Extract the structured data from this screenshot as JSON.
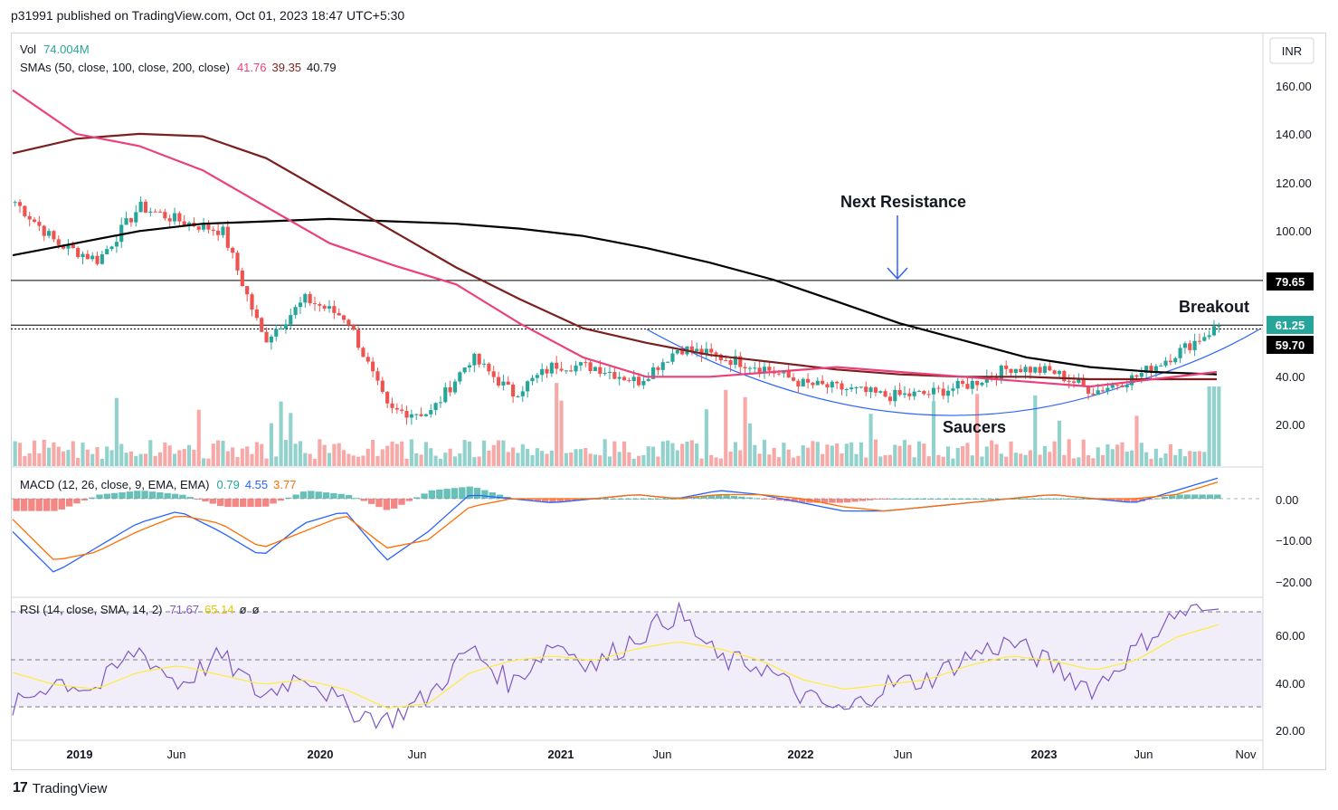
{
  "header": {
    "published_text": "p31991 published on TradingView.com, Oct 01, 2023 18:47 UTC+5:30"
  },
  "currency": "INR",
  "footer": {
    "brand": "TradingView"
  },
  "legends": {
    "vol_label": "Vol",
    "vol_value": "74.004M",
    "sma_label": "SMAs (50, close, 100, close, 200, close)",
    "sma_values": [
      "41.76",
      "39.35",
      "40.79"
    ],
    "macd_label": "MACD (12, 26, close, 9, EMA, EMA)",
    "macd_values": [
      "0.79",
      "4.55",
      "3.77"
    ],
    "rsi_label": "RSI (14, close, SMA, 14, 2)",
    "rsi_values": [
      "71.67",
      "65.14",
      "ø",
      "ø"
    ]
  },
  "annotations": {
    "next_resistance": "Next Resistance",
    "breakout": "Breakout",
    "saucers": "Saucers"
  },
  "price_tags": [
    "79.65",
    "61.25",
    "59.70"
  ],
  "colors": {
    "up": "#26a69a",
    "down": "#ef5350",
    "sma50": "#ec407a",
    "sma100": "#7b1f1f",
    "sma200": "#000000",
    "macd": "#2962ff",
    "signal": "#ff6d00",
    "rsi": "#7e57c2",
    "rsi_ma": "#ffeb3b",
    "saucer": "#2962ff"
  },
  "chart_data": [
    {
      "type": "candlestick",
      "title": "Price (INR) with SMAs 50/100/200 and Volume",
      "x_ticks": [
        "2019",
        "Jun",
        "2020",
        "Jun",
        "2021",
        "Jun",
        "2022",
        "Jun",
        "2023",
        "Jun",
        "Nov"
      ],
      "y_ticks": [
        "160.00",
        "140.00",
        "120.00",
        "100.00",
        "40.00",
        "20.00"
      ],
      "ylim": [
        0,
        170
      ],
      "horizontal_levels": [
        79.65,
        61.25,
        59.7
      ],
      "close_series": {
        "x": [
          "2018-11",
          "2019-01",
          "2019-03",
          "2019-05",
          "2019-07",
          "2019-09",
          "2019-11",
          "2020-01",
          "2020-03",
          "2020-05",
          "2020-07",
          "2020-09",
          "2020-11",
          "2021-01",
          "2021-03",
          "2021-05",
          "2021-07",
          "2021-09",
          "2021-11",
          "2022-01",
          "2022-03",
          "2022-05",
          "2022-07",
          "2022-09",
          "2022-11",
          "2023-01",
          "2023-03",
          "2023-05",
          "2023-07",
          "2023-09"
        ],
        "values": [
          112,
          95,
          88,
          110,
          104,
          100,
          55,
          72,
          64,
          26,
          25,
          48,
          33,
          45,
          44,
          38,
          52,
          48,
          44,
          37,
          35,
          32,
          33,
          37,
          44,
          42,
          34,
          40,
          50,
          61
        ]
      },
      "sma200": [
        90,
        95,
        100,
        103,
        104,
        105,
        104,
        103,
        101,
        98,
        93,
        87,
        80,
        71,
        62,
        55,
        48,
        44,
        42,
        41
      ],
      "sma100": [
        132,
        138,
        140,
        139,
        130,
        115,
        100,
        85,
        72,
        60,
        54,
        49,
        46,
        43,
        41,
        40,
        40,
        39,
        39,
        39
      ],
      "sma50": [
        158,
        140,
        135,
        125,
        110,
        95,
        86,
        78,
        62,
        48,
        40,
        40,
        42,
        44,
        42,
        40,
        38,
        36,
        39,
        42
      ]
    },
    {
      "type": "bar",
      "title": "MACD (12, 26, close, 9, EMA, EMA)",
      "y_ticks": [
        "0.00",
        "−10.00",
        "−20.00"
      ],
      "ylim": [
        -22,
        6
      ],
      "macd": [
        -8,
        -18,
        -12,
        -6,
        -3,
        -8,
        -14,
        -6,
        -3,
        -15,
        -8,
        1,
        0,
        -1,
        0,
        1,
        0,
        2,
        1,
        -1,
        -3,
        -3,
        -2,
        -1,
        0,
        1,
        0,
        -1,
        2,
        5
      ],
      "signal": [
        -5,
        -15,
        -13,
        -8,
        -4,
        -6,
        -12,
        -8,
        -4,
        -12,
        -10,
        -2,
        0,
        0,
        0,
        1,
        0,
        1,
        1,
        0,
        -2,
        -3,
        -2,
        -1,
        0,
        1,
        0,
        0,
        1,
        4
      ],
      "histogram": [
        -3,
        -3,
        1,
        2,
        1,
        -2,
        -2,
        2,
        1,
        -3,
        2,
        3,
        0,
        -1,
        0,
        0,
        0,
        1,
        0,
        -1,
        -1,
        0,
        0,
        0,
        0,
        0,
        0,
        -1,
        1,
        1
      ]
    },
    {
      "type": "line",
      "title": "RSI (14, close, SMA, 14, 2)",
      "y_ticks": [
        "60.00",
        "40.00",
        "20.00"
      ],
      "ylim": [
        18,
        78
      ],
      "bands": [
        30,
        50,
        70
      ],
      "rsi": [
        30,
        42,
        38,
        55,
        40,
        52,
        35,
        45,
        30,
        25,
        35,
        55,
        40,
        58,
        48,
        60,
        70,
        50,
        48,
        35,
        28,
        40,
        42,
        52,
        58,
        48,
        38,
        55,
        70,
        71.67
      ],
      "rsi_ma": [
        45,
        40,
        38,
        45,
        48,
        44,
        40,
        42,
        38,
        30,
        32,
        45,
        50,
        52,
        50,
        55,
        58,
        55,
        50,
        42,
        38,
        40,
        42,
        48,
        52,
        50,
        46,
        50,
        60,
        65.14
      ]
    }
  ]
}
